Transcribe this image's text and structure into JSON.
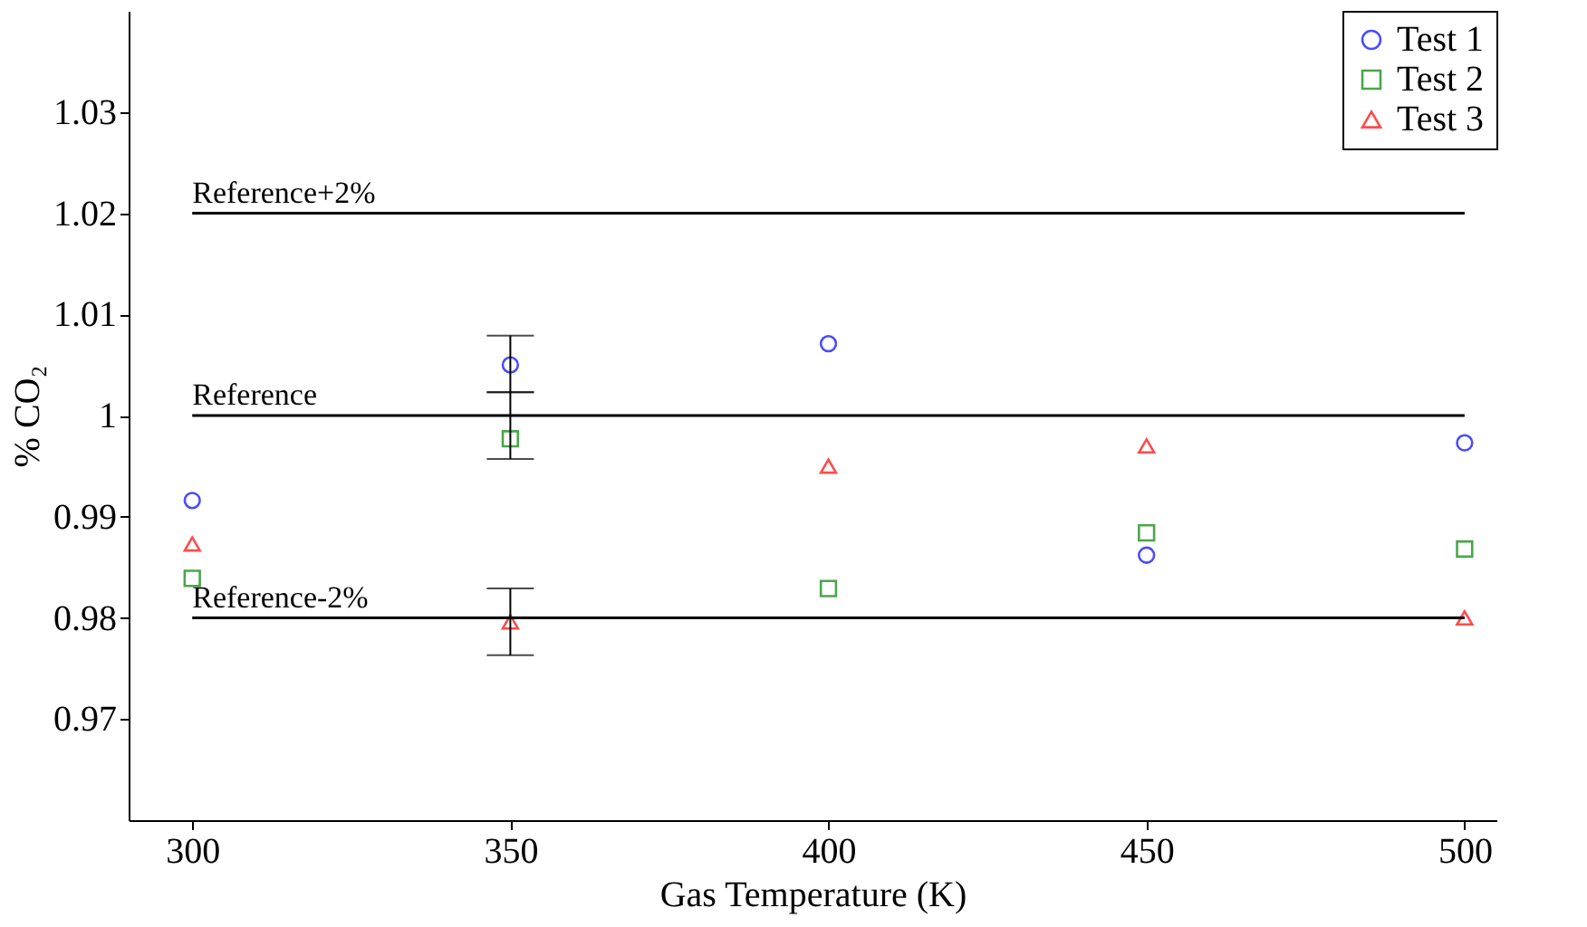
{
  "chart_data": {
    "type": "scatter",
    "xlabel": "Gas Temperature (K)",
    "ylabel": "% CO₂",
    "x": [
      300,
      350,
      400,
      450,
      500
    ],
    "series": [
      {
        "name": "Test 1",
        "color": "#0000ff",
        "marker": "circle",
        "values": [
          0.9916,
          1.005,
          1.0071,
          0.9862,
          0.9973
        ],
        "errors": [
          null,
          [
            1.0023,
            1.0079
          ],
          null,
          null,
          null
        ]
      },
      {
        "name": "Test 2",
        "color": "#008000",
        "marker": "square",
        "values": [
          0.9839,
          0.9977,
          0.9829,
          0.9884,
          0.9868
        ],
        "errors": [
          null,
          [
            0.9957,
            1.0023
          ],
          null,
          null,
          null
        ]
      },
      {
        "name": "Test 3",
        "color": "#ff0000",
        "marker": "triangle",
        "values": [
          0.9873,
          0.9796,
          0.995,
          0.997,
          0.98
        ],
        "errors": [
          null,
          [
            0.9763,
            0.9829
          ],
          null,
          null,
          null
        ]
      }
    ],
    "ref_lines": [
      {
        "axis": "y",
        "value": 1.02,
        "label": "Reference+2%",
        "color": "#000000"
      },
      {
        "axis": "y",
        "value": 1.0,
        "label": "Reference",
        "color": "#000000"
      },
      {
        "axis": "y",
        "value": 0.98,
        "label": "Reference-2%",
        "color": "#000000"
      }
    ],
    "xlim": [
      290,
      505
    ],
    "ylim": [
      0.96,
      1.04
    ],
    "xticks": [
      300,
      350,
      400,
      450,
      500
    ],
    "yticks": [
      0.97,
      0.98,
      0.99,
      1,
      1.01,
      1.02,
      1.03
    ],
    "grid": false,
    "legend": "top right"
  }
}
